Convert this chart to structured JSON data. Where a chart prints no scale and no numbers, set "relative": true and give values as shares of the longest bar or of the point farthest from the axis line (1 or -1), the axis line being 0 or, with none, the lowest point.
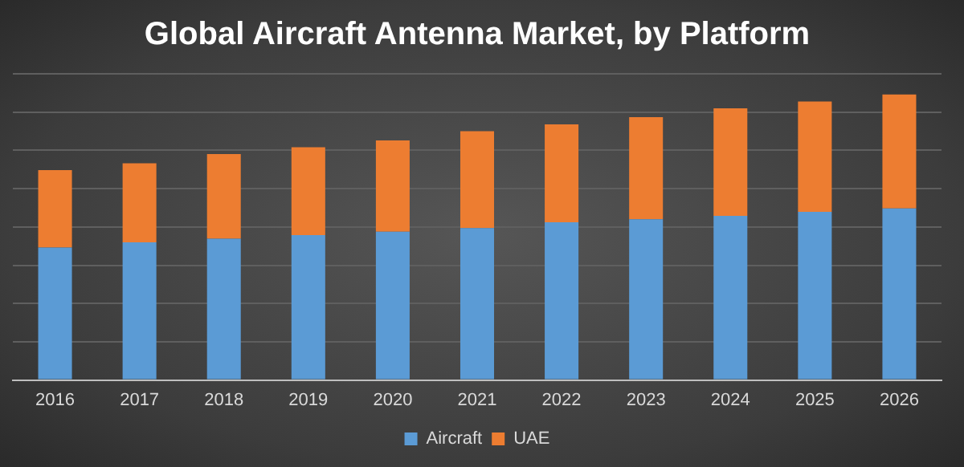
{
  "chart_data": {
    "type": "bar",
    "title": "Global Aircraft Antenna Market, by Platform",
    "categories": [
      "2016",
      "2017",
      "2018",
      "2019",
      "2020",
      "2021",
      "2022",
      "2023",
      "2024",
      "2025",
      "2026"
    ],
    "relative": true,
    "stacked": true,
    "grid": "y",
    "legend": "bottom",
    "series": [
      {
        "name": "Aircraft",
        "color": "#5b9bd5",
        "values": [
          0.464,
          0.482,
          0.495,
          0.507,
          0.519,
          0.532,
          0.552,
          0.563,
          0.575,
          0.589,
          0.601
        ]
      },
      {
        "name": "UAE",
        "color": "#ed7d31",
        "values": [
          0.271,
          0.277,
          0.296,
          0.308,
          0.32,
          0.339,
          0.343,
          0.357,
          0.376,
          0.386,
          0.399
        ]
      }
    ]
  }
}
